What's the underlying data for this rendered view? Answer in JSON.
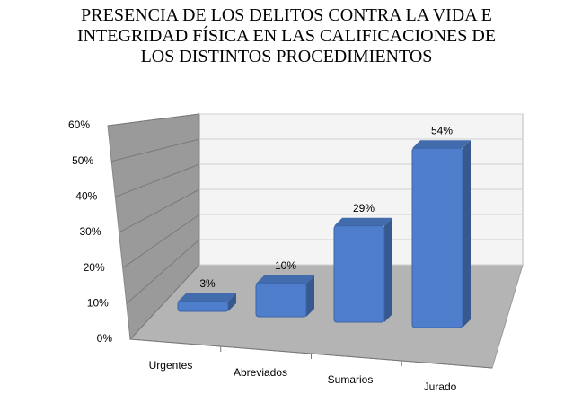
{
  "chart_data": {
    "type": "bar3d",
    "title": "PRESENCIA DE LOS DELITOS CONTRA LA VIDA E INTEGRIDAD FÍSICA EN LAS CALIFICACIONES DE LOS DISTINTOS PROCEDIMIENTOS",
    "categories": [
      "Urgentes",
      "Abreviados",
      "Sumarios",
      "Jurado"
    ],
    "values": [
      3,
      10,
      29,
      54
    ],
    "value_labels": [
      "3%",
      "10%",
      "29%",
      "54%"
    ],
    "color": "#4f7fcc",
    "ylim": [
      0,
      60
    ],
    "yticks": [
      {
        "value": 0,
        "label": "0%"
      },
      {
        "value": 10,
        "label": "10%"
      },
      {
        "value": 20,
        "label": "20%"
      },
      {
        "value": 30,
        "label": "30%"
      },
      {
        "value": 40,
        "label": "40%"
      },
      {
        "value": 50,
        "label": "50%"
      },
      {
        "value": 60,
        "label": "60%"
      }
    ],
    "grid": true
  }
}
